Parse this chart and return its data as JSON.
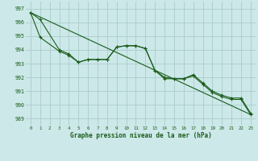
{
  "title": "Graphe pression niveau de la mer (hPa)",
  "bg_color": "#cce8e8",
  "grid_color": "#aacccc",
  "line_color": "#1a5c1a",
  "text_color": "#1a5c1a",
  "xlim": [
    -0.5,
    23.5
  ],
  "ylim": [
    988.5,
    997.5
  ],
  "yticks": [
    989,
    990,
    991,
    992,
    993,
    994,
    995,
    996,
    997
  ],
  "xticks": [
    0,
    1,
    2,
    3,
    4,
    5,
    6,
    7,
    8,
    9,
    10,
    11,
    12,
    13,
    14,
    15,
    16,
    17,
    18,
    19,
    20,
    21,
    22,
    23
  ],
  "series1_x": [
    0,
    1,
    3,
    4,
    5,
    6,
    7,
    8,
    9,
    10,
    11,
    12,
    13,
    14,
    15,
    16,
    17,
    18,
    19,
    20,
    21,
    22,
    23
  ],
  "series1_y": [
    996.7,
    996.2,
    994.0,
    993.7,
    993.1,
    993.3,
    993.3,
    993.3,
    994.2,
    994.3,
    994.3,
    994.1,
    992.5,
    992.0,
    991.9,
    991.9,
    992.2,
    991.6,
    991.0,
    990.7,
    990.5,
    990.5,
    989.4
  ],
  "series2_x": [
    0,
    1,
    3,
    4,
    5,
    6,
    7,
    8,
    9,
    10,
    11,
    12,
    13,
    14,
    15,
    16,
    17,
    18,
    19,
    20,
    21,
    22,
    23
  ],
  "series2_y": [
    996.7,
    994.9,
    993.9,
    993.6,
    993.1,
    993.3,
    993.3,
    993.3,
    994.2,
    994.3,
    994.3,
    994.1,
    992.5,
    991.9,
    991.9,
    991.9,
    992.1,
    991.5,
    990.9,
    990.6,
    990.4,
    990.4,
    989.3
  ],
  "trend_x": [
    0,
    23
  ],
  "trend_y": [
    996.7,
    989.3
  ]
}
